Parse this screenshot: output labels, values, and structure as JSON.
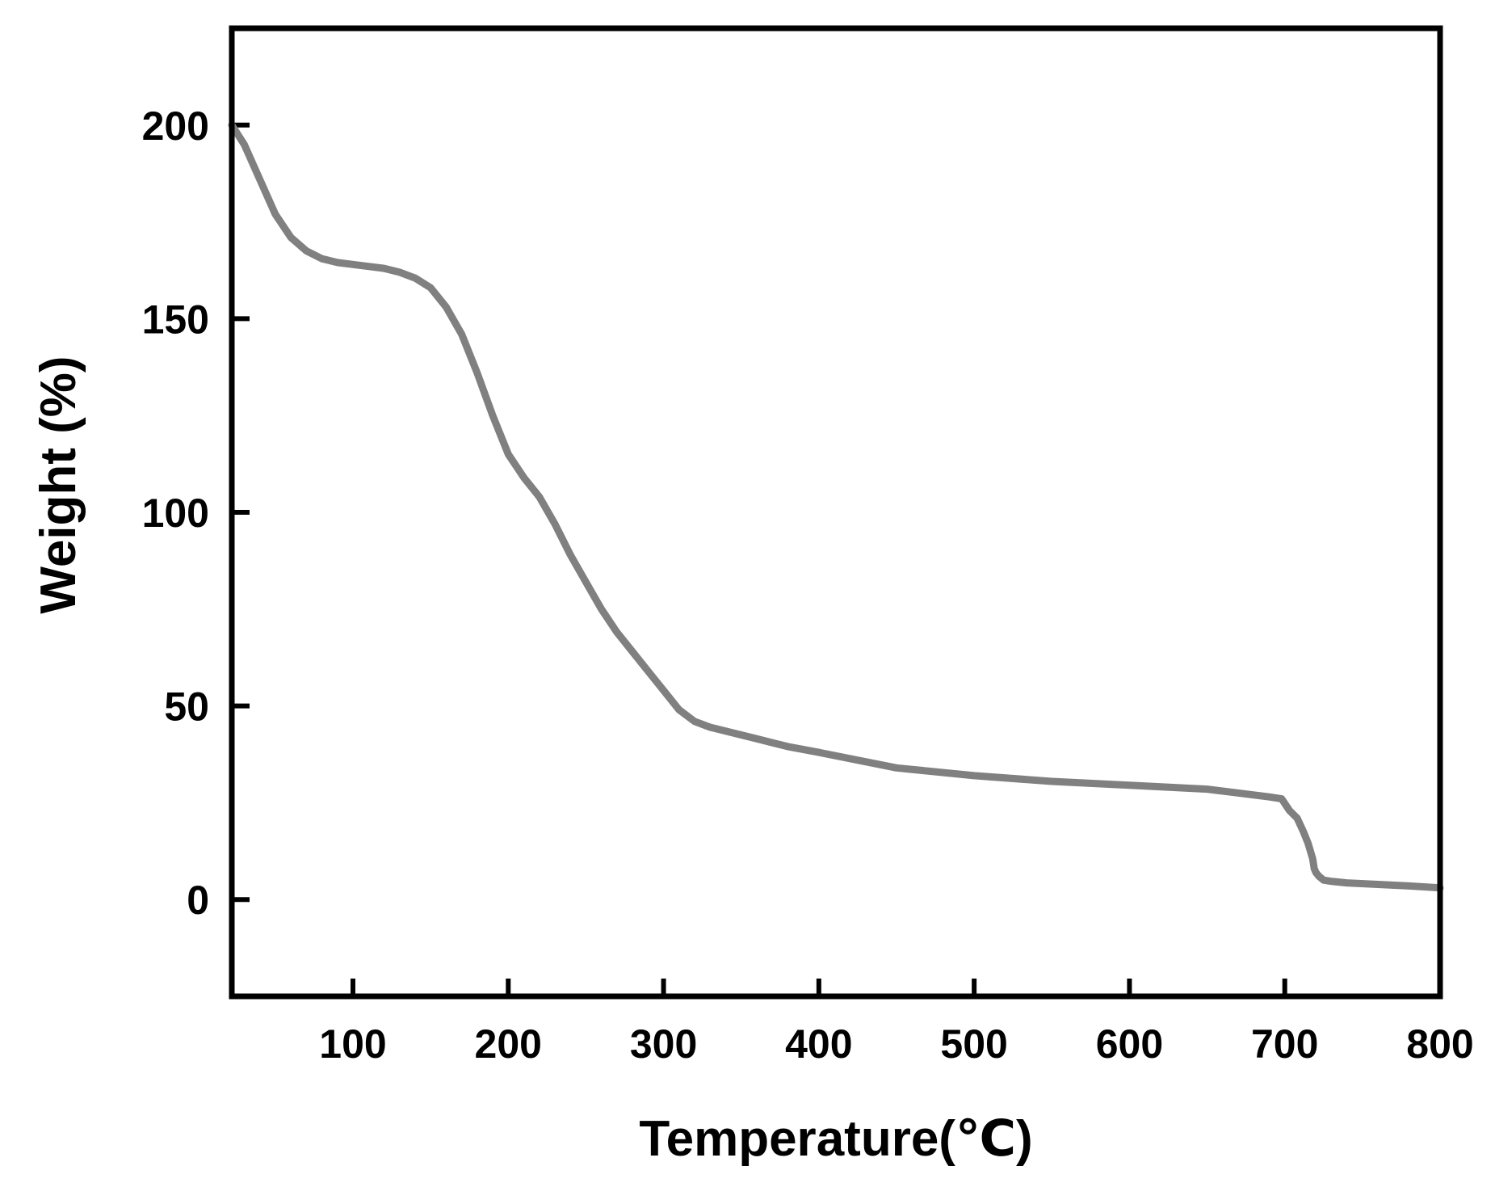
{
  "chart_data": {
    "type": "line",
    "title": "",
    "xlabel": "Temperature(℃)",
    "ylabel": "Weight (%)",
    "xlim": [
      22,
      800
    ],
    "ylim": [
      -25,
      225
    ],
    "grid": false,
    "legend": "none",
    "x_ticks": [
      100,
      200,
      300,
      400,
      500,
      600,
      700,
      800
    ],
    "x_tick_labels": [
      "100",
      "200",
      "300",
      "400",
      "500",
      "600",
      "700",
      "800"
    ],
    "y_ticks": [
      0,
      50,
      100,
      150,
      200
    ],
    "y_tick_labels": [
      "0",
      "50",
      "100",
      "150",
      "200"
    ],
    "colors": {
      "line": "#808080",
      "axis": "#000000"
    },
    "series": [
      {
        "x": [
          22,
          30,
          40,
          50,
          60,
          70,
          80,
          90,
          100,
          110,
          120,
          130,
          140,
          150,
          160,
          170,
          180,
          190,
          200,
          210,
          220,
          230,
          240,
          250,
          260,
          270,
          280,
          290,
          300,
          310,
          320,
          330,
          340,
          350,
          360,
          370,
          380,
          400,
          450,
          500,
          550,
          600,
          650,
          690,
          698,
          703,
          708,
          712,
          715,
          718,
          719,
          720,
          722,
          725,
          730,
          740,
          760,
          780,
          800
        ],
        "y": [
          200,
          195,
          186,
          177,
          171,
          167.5,
          165.5,
          164.5,
          164,
          163.5,
          163,
          162,
          160.5,
          158,
          153,
          146,
          136,
          125,
          115,
          109,
          104,
          97,
          89,
          82,
          75,
          69,
          64,
          59,
          54,
          49,
          46,
          44.5,
          43.5,
          42.5,
          41.5,
          40.5,
          39.5,
          38,
          34,
          32,
          30.5,
          29.5,
          28.5,
          26.5,
          26,
          23,
          21,
          17.5,
          14.5,
          10.5,
          8,
          7,
          6,
          5,
          4.7,
          4.3,
          3.9,
          3.5,
          3
        ]
      }
    ]
  }
}
